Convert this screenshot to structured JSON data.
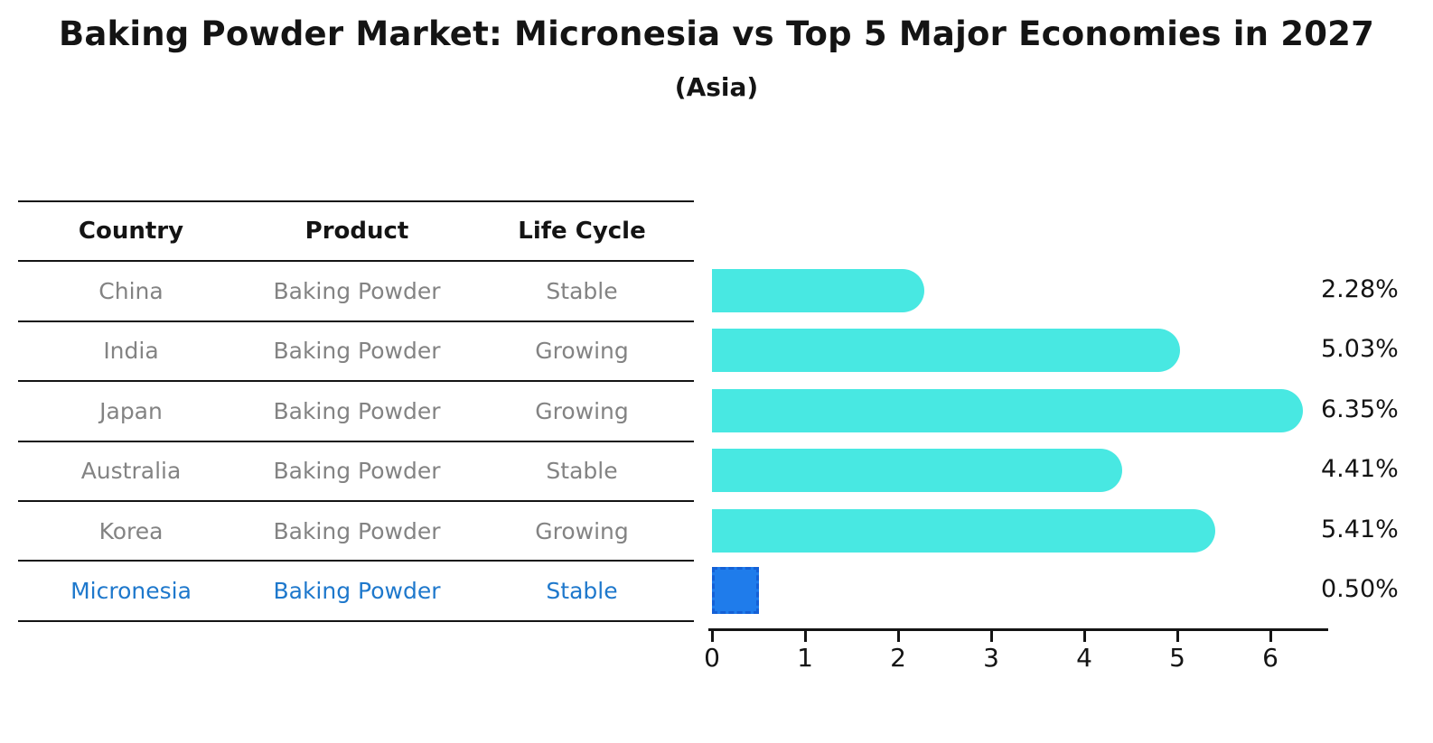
{
  "title": "Baking Powder Market: Micronesia vs Top 5 Major Economies in 2027",
  "subtitle": "(Asia)",
  "table": {
    "headers": {
      "country": "Country",
      "product": "Product",
      "life_cycle": "Life Cycle"
    },
    "rows": [
      {
        "country": "China",
        "product": "Baking Powder",
        "life_cycle": "Stable",
        "highlighted": false
      },
      {
        "country": "India",
        "product": "Baking Powder",
        "life_cycle": "Growing",
        "highlighted": false
      },
      {
        "country": "Japan",
        "product": "Baking Powder",
        "life_cycle": "Growing",
        "highlighted": false
      },
      {
        "country": "Australia",
        "product": "Baking Powder",
        "life_cycle": "Stable",
        "highlighted": false
      },
      {
        "country": "Korea",
        "product": "Baking Powder",
        "life_cycle": "Growing",
        "highlighted": false
      },
      {
        "country": "Micronesia",
        "product": "Baking Powder",
        "life_cycle": "Stable",
        "highlighted": true
      }
    ]
  },
  "chart_data": {
    "type": "bar",
    "orientation": "horizontal",
    "title": "Baking Powder Market: Micronesia vs Top 5 Major Economies in 2027 (Asia)",
    "categories": [
      "China",
      "India",
      "Japan",
      "Australia",
      "Korea",
      "Micronesia"
    ],
    "values": [
      2.28,
      5.03,
      6.35,
      4.41,
      5.41,
      0.5
    ],
    "value_labels": [
      "2.28%",
      "5.03%",
      "6.35%",
      "4.41%",
      "5.41%",
      "0.50%"
    ],
    "xlabel": "",
    "ylabel": "",
    "xlim": [
      0,
      6.7
    ],
    "x_ticks": [
      0,
      1,
      2,
      3,
      4,
      5,
      6
    ],
    "grid": false,
    "legend": "none",
    "bar_color": "#48E8E2",
    "highlight_color": "#1F7CEB",
    "highlight_index": 5
  },
  "colors": {
    "bar_cyan": "#48E8E2",
    "bar_blue": "#1F7CEB",
    "bar_blue_border": "#1460D6",
    "highlight_text": "#1E78CC",
    "row_text": "#838383",
    "ink": "#141414"
  }
}
